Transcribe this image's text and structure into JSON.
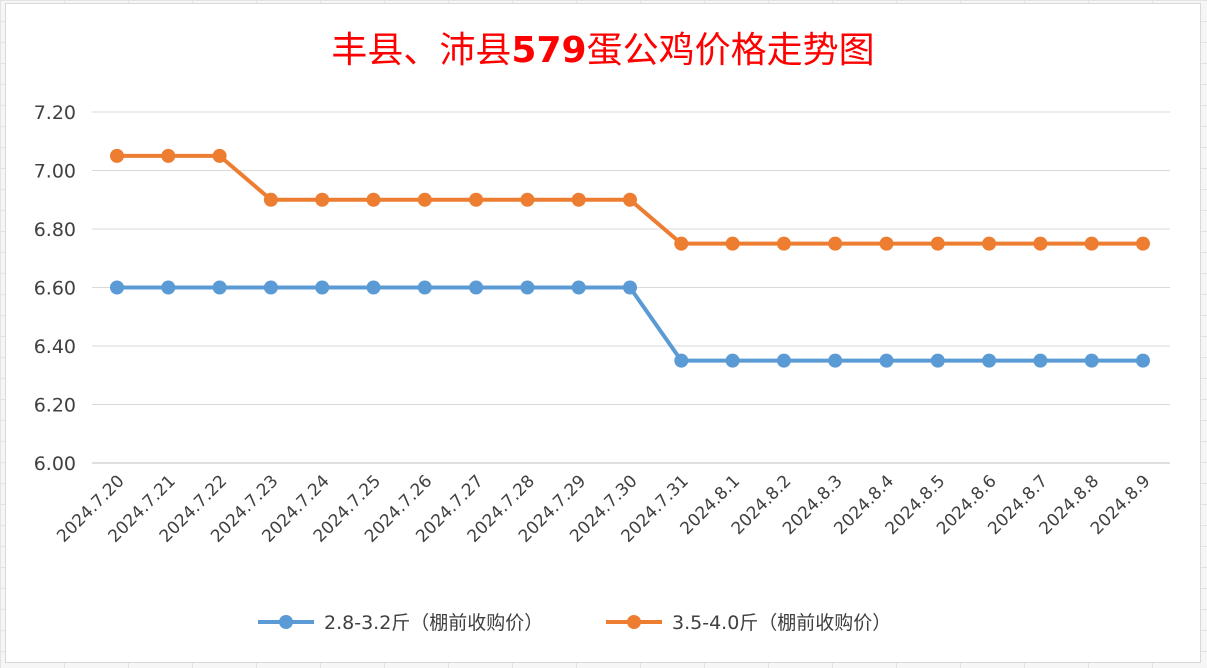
{
  "chart_data": {
    "type": "line",
    "title_pre": "丰县、沛县",
    "title_num": "579",
    "title_post": "蛋公鸡价格走势图",
    "categories": [
      "2024.7.20",
      "2024.7.21",
      "2024.7.22",
      "2024.7.23",
      "2024.7.24",
      "2024.7.25",
      "2024.7.26",
      "2024.7.27",
      "2024.7.28",
      "2024.7.29",
      "2024.7.30",
      "2024.7.31",
      "2024.8.1",
      "2024.8.2",
      "2024.8.3",
      "2024.8.4",
      "2024.8.5",
      "2024.8.6",
      "2024.8.7",
      "2024.8.8",
      "2024.8.9"
    ],
    "ylim": [
      6.0,
      7.2
    ],
    "yticks": [
      "6.00",
      "6.20",
      "6.40",
      "6.60",
      "6.80",
      "7.00",
      "7.20"
    ],
    "grid": true,
    "legend_position": "bottom",
    "series": [
      {
        "name": "2.8-3.2斤（棚前收购价）",
        "color": "#5b9bd5",
        "values": [
          6.6,
          6.6,
          6.6,
          6.6,
          6.6,
          6.6,
          6.6,
          6.6,
          6.6,
          6.6,
          6.6,
          6.35,
          6.35,
          6.35,
          6.35,
          6.35,
          6.35,
          6.35,
          6.35,
          6.35,
          6.35
        ]
      },
      {
        "name": "3.5-4.0斤（棚前收购价）",
        "color": "#ed7d31",
        "values": [
          7.05,
          7.05,
          7.05,
          6.9,
          6.9,
          6.9,
          6.9,
          6.9,
          6.9,
          6.9,
          6.9,
          6.75,
          6.75,
          6.75,
          6.75,
          6.75,
          6.75,
          6.75,
          6.75,
          6.75,
          6.75
        ]
      }
    ]
  }
}
